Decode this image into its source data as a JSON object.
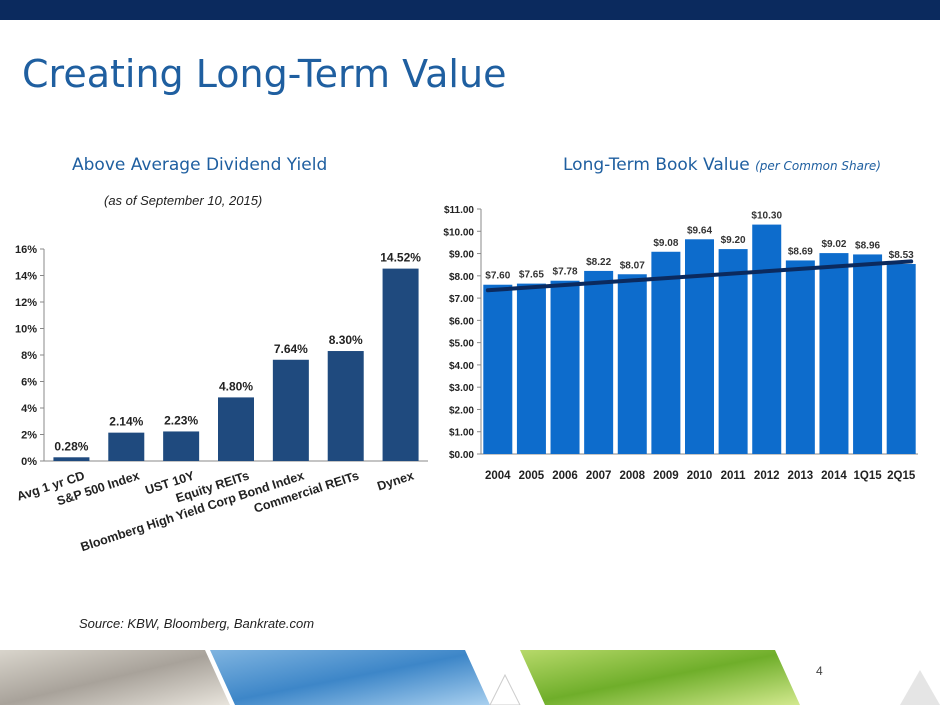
{
  "header": {
    "title": "Creating Long-Term Value"
  },
  "left_panel": {
    "title": "Above Average Dividend Yield",
    "subtitle": "(as of September 10, 2015)"
  },
  "right_panel": {
    "title": "Long-Term Book Value",
    "title_note": "(per Common Share)"
  },
  "footer": {
    "source": "Source: KBW, Bloomberg, Bankrate.com",
    "page_number": "4"
  },
  "colors": {
    "top_band": "#0b2a5e",
    "title": "#1f5fa0",
    "yield_bars": "#1f4a7e",
    "book_bars": "#0d6ccc",
    "trend_line": "#0b2a5e"
  },
  "chart_data": [
    {
      "type": "bar",
      "categories": [
        "Avg 1 yr CD",
        "S&P 500 Index",
        "UST 10Y",
        "Equity REITs",
        "Bloomberg High Yield Corp Bond Index",
        "Commercial REITs",
        "Dynex"
      ],
      "values": [
        0.28,
        2.14,
        2.23,
        4.8,
        7.64,
        8.3,
        14.52
      ],
      "data_labels": [
        "0.28%",
        "2.14%",
        "2.23%",
        "4.80%",
        "7.64%",
        "8.30%",
        "14.52%"
      ],
      "y_ticks": [
        "0%",
        "2%",
        "4%",
        "6%",
        "8%",
        "10%",
        "12%",
        "14%",
        "16%"
      ],
      "ylim": [
        0,
        16
      ],
      "grid": false,
      "legend": "none"
    },
    {
      "type": "bar",
      "categories": [
        "2004",
        "2005",
        "2006",
        "2007",
        "2008",
        "2009",
        "2010",
        "2011",
        "2012",
        "2013",
        "2014",
        "1Q15",
        "2Q15"
      ],
      "values": [
        7.6,
        7.65,
        7.78,
        8.22,
        8.07,
        9.08,
        9.64,
        9.2,
        10.3,
        8.69,
        9.02,
        8.96,
        8.53
      ],
      "data_labels": [
        "$7.60",
        "$7.65",
        "$7.78",
        "$8.22",
        "$8.07",
        "$9.08",
        "$9.64",
        "$9.20",
        "$10.30",
        "$8.69",
        "$9.02",
        "$8.96",
        "$8.53"
      ],
      "y_ticks": [
        "$0.00",
        "$1.00",
        "$2.00",
        "$3.00",
        "$4.00",
        "$5.00",
        "$6.00",
        "$7.00",
        "$8.00",
        "$9.00",
        "$10.00",
        "$11.00"
      ],
      "ylim": [
        0,
        11
      ],
      "trendline": {
        "start": 7.35,
        "end": 8.65
      },
      "grid": false,
      "legend": "none"
    }
  ]
}
